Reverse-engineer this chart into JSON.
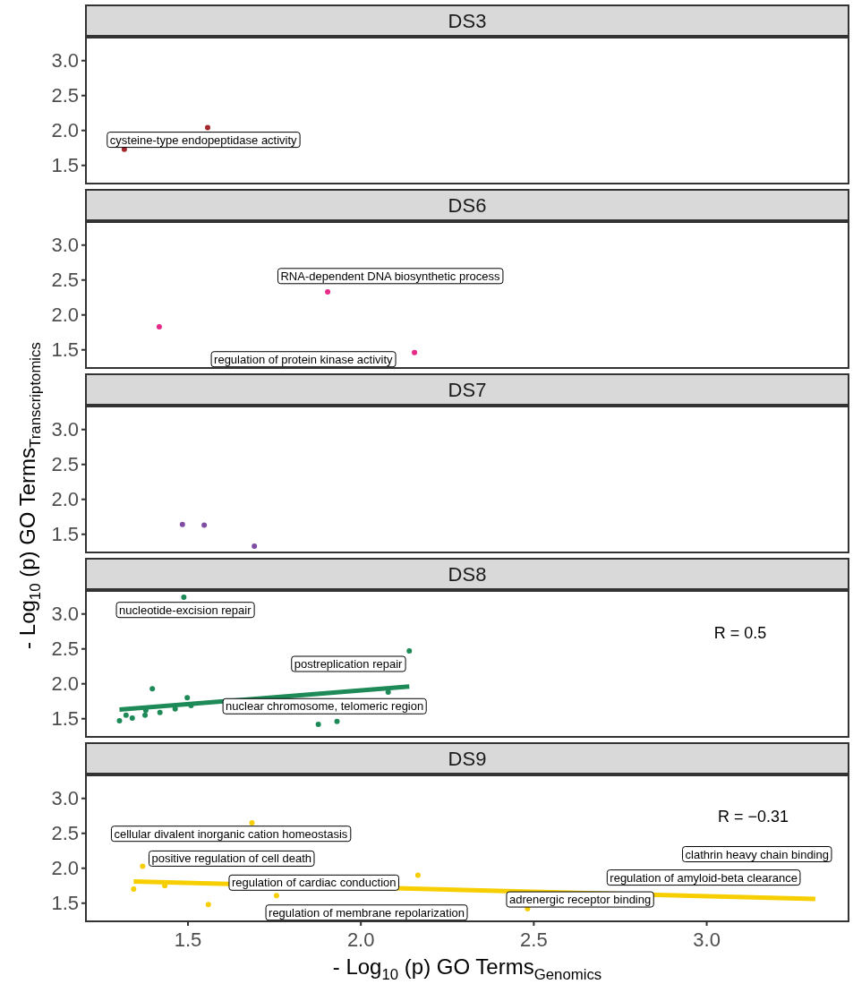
{
  "chart_data": [
    {
      "type": "scatter",
      "title": "DS3",
      "xlim": [
        1.205,
        3.41
      ],
      "ylim": [
        1.24,
        3.33
      ],
      "yticks": [
        {
          "value": 1.5,
          "label": "1.5"
        },
        {
          "value": 2,
          "label": "2.0"
        },
        {
          "value": 2.5,
          "label": "2.5"
        },
        {
          "value": 3,
          "label": "3.0"
        }
      ],
      "tick_labels": "y",
      "grid": false,
      "series": [
        {
          "marker": "circle",
          "color": "#a2282e",
          "x": [
            1.557,
            1.316
          ],
          "values": [
            2.04,
            1.73
          ]
        }
      ],
      "annotations": [
        "cysteine-type endopeptidase activity"
      ]
    },
    {
      "type": "scatter",
      "title": "DS6",
      "xlim": [
        1.205,
        3.41
      ],
      "ylim": [
        1.24,
        3.33
      ],
      "yticks": [
        {
          "value": 1.5,
          "label": "1.5"
        },
        {
          "value": 2,
          "label": "2.0"
        },
        {
          "value": 2.5,
          "label": "2.5"
        },
        {
          "value": 3,
          "label": "3.0"
        }
      ],
      "tick_labels": "y",
      "grid": false,
      "series": [
        {
          "marker": "circle",
          "color": "#e7298a",
          "x": [
            1.904,
            1.417,
            2.155
          ],
          "values": [
            2.33,
            1.83,
            1.46
          ]
        }
      ],
      "annotations": [
        "RNA-dependent DNA biosynthetic process",
        "regulation of protein kinase activity"
      ]
    },
    {
      "type": "scatter",
      "title": "DS7",
      "ylabel": "- Log$_{10}$ (p) GO Terms$_{Transcriptomics}$",
      "xlim": [
        1.205,
        3.41
      ],
      "ylim": [
        1.24,
        3.33
      ],
      "yticks": [
        {
          "value": 1.5,
          "label": "1.5"
        },
        {
          "value": 2,
          "label": "2.0"
        },
        {
          "value": 2.5,
          "label": "2.5"
        },
        {
          "value": 3,
          "label": "3.0"
        }
      ],
      "tick_labels": "y",
      "grid": false,
      "series": [
        {
          "marker": "circle",
          "color": "#7f4ea3",
          "x": [
            1.484,
            1.547,
            1.692
          ],
          "values": [
            1.64,
            1.63,
            1.33
          ]
        }
      ]
    },
    {
      "type": "scatter",
      "title": "DS8",
      "xlim": [
        1.205,
        3.41
      ],
      "ylim": [
        1.24,
        3.33
      ],
      "yticks": [
        {
          "value": 1.5,
          "label": "1.5"
        },
        {
          "value": 2,
          "label": "2.0"
        },
        {
          "value": 2.5,
          "label": "2.5"
        },
        {
          "value": 3,
          "label": "3.0"
        }
      ],
      "tick_labels": "y",
      "grid": false,
      "series": [
        {
          "marker": "circle",
          "color": "#1d8a58",
          "x": [
            1.488,
            2.14,
            2.079,
            1.397,
            1.498,
            1.509,
            1.463,
            1.419,
            1.376,
            1.378,
            1.339,
            1.321,
            1.302,
            1.877,
            1.931
          ],
          "values": [
            3.24,
            2.47,
            1.88,
            1.93,
            1.8,
            1.69,
            1.64,
            1.59,
            1.55,
            1.62,
            1.51,
            1.55,
            1.47,
            1.42,
            1.46
          ]
        },
        {
          "type": "line",
          "color": "#1d8a58",
          "x": [
            1.302,
            2.14
          ],
          "values": [
            1.63,
            1.96
          ]
        }
      ],
      "annotations": [
        "nucleotide-excision repair",
        "postreplication repair",
        "nuclear chromosome, telomeric region",
        "R = 0.5"
      ]
    },
    {
      "type": "scatter",
      "title": "DS9",
      "xlabel": "- Log$_{10}$ (p) GO Terms$_{Genomics}$",
      "xlim": [
        1.205,
        3.41
      ],
      "xticks": [
        {
          "value": 1.5,
          "label": "1.5"
        },
        {
          "value": 2,
          "label": "2.0"
        },
        {
          "value": 2.5,
          "label": "2.5"
        },
        {
          "value": 3,
          "label": "3.0"
        }
      ],
      "ylim": [
        1.24,
        3.33
      ],
      "yticks": [
        {
          "value": 1.5,
          "label": "1.5"
        },
        {
          "value": 2,
          "label": "2.0"
        },
        {
          "value": 2.5,
          "label": "2.5"
        },
        {
          "value": 3,
          "label": "3.0"
        }
      ],
      "grid": false,
      "series": [
        {
          "marker": "circle",
          "color": "#f7cf00",
          "x": [
            1.685,
            1.369,
            1.343,
            1.433,
            1.559,
            1.756,
            2.165,
            2.482
          ],
          "values": [
            2.65,
            2.03,
            1.7,
            1.75,
            1.48,
            1.61,
            1.9,
            1.42
          ]
        },
        {
          "type": "line",
          "color": "#f7cf00",
          "x": [
            1.343,
            3.314
          ],
          "values": [
            1.81,
            1.56
          ]
        }
      ],
      "annotations": [
        "cellular divalent inorganic cation homeostasis",
        "positive regulation of cell death",
        "regulation of cardiac conduction",
        "regulation of membrane repolarization",
        "adrenergic receptor binding",
        "regulation of amyloid-beta clearance",
        "clathrin heavy chain binding",
        "R = −0.31"
      ]
    }
  ]
}
